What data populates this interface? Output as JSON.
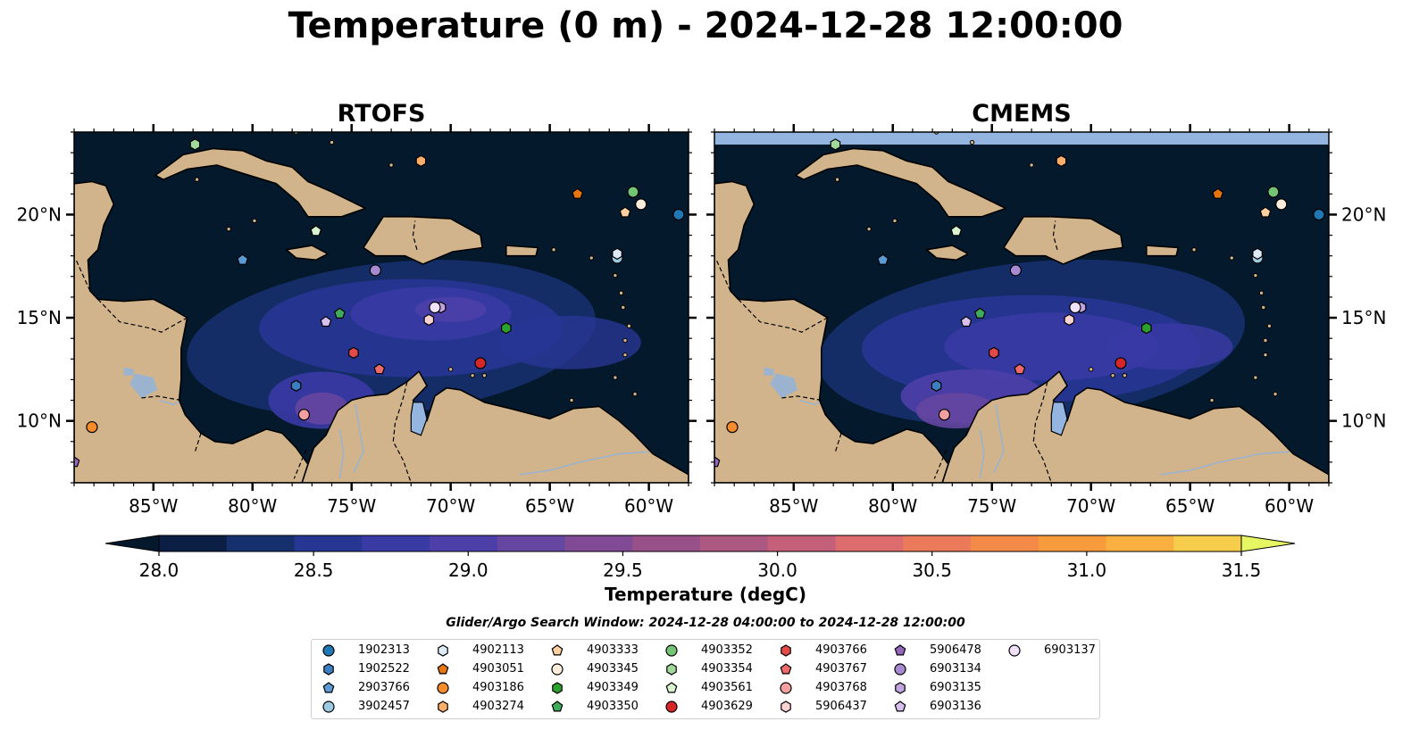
{
  "title": "Temperature (0 m) - 2024-12-28 12:00:00",
  "panels": [
    {
      "id": "left",
      "title": "RTOFS"
    },
    {
      "id": "right",
      "title": "CMEMS"
    }
  ],
  "map": {
    "lon_range": [
      -89,
      -58
    ],
    "lat_range": [
      7,
      24
    ],
    "lon_ticks": [
      {
        "value": -85,
        "label": "85°W"
      },
      {
        "value": -80,
        "label": "80°W"
      },
      {
        "value": -75,
        "label": "75°W"
      },
      {
        "value": -70,
        "label": "70°W"
      },
      {
        "value": -65,
        "label": "65°W"
      },
      {
        "value": -60,
        "label": "60°W"
      }
    ],
    "lat_ticks": [
      {
        "value": 20,
        "label": "20°N"
      },
      {
        "value": 15,
        "label": "15°N"
      },
      {
        "value": 10,
        "label": "10°N"
      }
    ]
  },
  "colorbar": {
    "label": "Temperature (degC)",
    "range": [
      28.0,
      31.5
    ],
    "ticks": [
      "28.0",
      "28.5",
      "29.0",
      "29.5",
      "30.0",
      "30.5",
      "31.0",
      "31.5"
    ],
    "colors": [
      "#0b1e44",
      "#16306e",
      "#273693",
      "#3a3aa5",
      "#4c3fa8",
      "#6546a0",
      "#804b94",
      "#975088",
      "#ad5880",
      "#c5607a",
      "#dc6c6d",
      "#eb7a5a",
      "#f38a47",
      "#f89b3c",
      "#f9b040",
      "#f6cd4b"
    ],
    "under_color": "#05192d",
    "over_color": "#e6f562"
  },
  "search_window": "Glider/Argo Search Window: 2024-12-28 04:00:00 to 2024-12-28 12:00:00",
  "colors": {
    "ocean_dark": "#05192d",
    "land": "#d2b48c",
    "lake": "#93b5e0",
    "river": "#9bb3cf"
  },
  "platforms": [
    {
      "id": "1902313",
      "marker": "circle",
      "color": "#1f77b4",
      "lon": -58.5,
      "lat": 20.0
    },
    {
      "id": "1902522",
      "marker": "hexagon",
      "color": "#3c7fc0",
      "lon": -77.8,
      "lat": 11.7
    },
    {
      "id": "2903766",
      "marker": "pentagon",
      "color": "#5a9bd5",
      "lon": -80.5,
      "lat": 17.8
    },
    {
      "id": "3902457",
      "marker": "circle",
      "color": "#9ecae1",
      "lon": -61.6,
      "lat": 17.9
    },
    {
      "id": "4902113",
      "marker": "hexagon",
      "color": "#deebf7",
      "lon": -61.6,
      "lat": 18.1
    },
    {
      "id": "4903051",
      "marker": "pentagon",
      "color": "#e6750f",
      "lon": -63.6,
      "lat": 21.0
    },
    {
      "id": "4903186",
      "marker": "circle",
      "color": "#f58b2b",
      "lon": -88.1,
      "lat": 9.7
    },
    {
      "id": "4903274",
      "marker": "hexagon",
      "color": "#fdae6b",
      "lon": -71.5,
      "lat": 22.6
    },
    {
      "id": "4903333",
      "marker": "pentagon",
      "color": "#fdd0a2",
      "lon": -61.2,
      "lat": 20.1
    },
    {
      "id": "4903345",
      "marker": "circle",
      "color": "#feeddc",
      "lon": -60.4,
      "lat": 20.5
    },
    {
      "id": "4903349",
      "marker": "hexagon",
      "color": "#2ca02c",
      "lon": -67.2,
      "lat": 14.5
    },
    {
      "id": "4903350",
      "marker": "pentagon",
      "color": "#41ab5d",
      "lon": -75.6,
      "lat": 15.2
    },
    {
      "id": "4903352",
      "marker": "circle",
      "color": "#74c476",
      "lon": -60.8,
      "lat": 21.1
    },
    {
      "id": "4903354",
      "marker": "hexagon",
      "color": "#a1d99b",
      "lon": -82.9,
      "lat": 23.4
    },
    {
      "id": "4903561",
      "marker": "pentagon",
      "color": "#d9f5cf",
      "lon": -76.8,
      "lat": 19.2
    },
    {
      "id": "4903629",
      "marker": "circle",
      "color": "#d62728",
      "lon": -68.5,
      "lat": 12.8
    },
    {
      "id": "4903766",
      "marker": "hexagon",
      "color": "#e34a4a",
      "lon": -74.9,
      "lat": 13.3
    },
    {
      "id": "4903767",
      "marker": "pentagon",
      "color": "#ef6b6b",
      "lon": -73.6,
      "lat": 12.5
    },
    {
      "id": "4903768",
      "marker": "circle",
      "color": "#f4a0a0",
      "lon": -77.4,
      "lat": 10.3
    },
    {
      "id": "5906437",
      "marker": "hexagon",
      "color": "#fcd3d3",
      "lon": -71.1,
      "lat": 14.9
    },
    {
      "id": "5906478",
      "marker": "pentagon",
      "color": "#9467bd",
      "lon": -89.0,
      "lat": 8.0
    },
    {
      "id": "6903134",
      "marker": "circle",
      "color": "#a78bd0",
      "lon": -73.8,
      "lat": 17.3
    },
    {
      "id": "6903135",
      "marker": "hexagon",
      "color": "#c2a5e0",
      "lon": -70.5,
      "lat": 15.5
    },
    {
      "id": "6903136",
      "marker": "pentagon",
      "color": "#d8c0ee",
      "lon": -76.3,
      "lat": 14.8
    },
    {
      "id": "6903137",
      "marker": "circle",
      "color": "#f1e2fb",
      "lon": -70.8,
      "lat": 15.5
    }
  ]
}
